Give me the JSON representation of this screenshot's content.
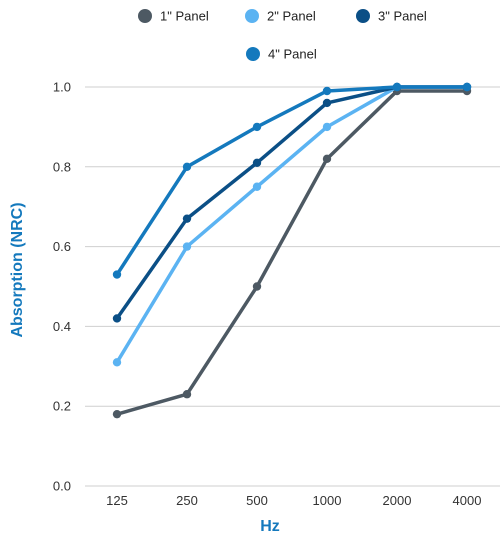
{
  "chart_data": {
    "type": "line",
    "title": "",
    "xlabel": "Hz",
    "ylabel": "Absorption (NRC)",
    "categories": [
      "125",
      "250",
      "500",
      "1000",
      "2000",
      "4000"
    ],
    "yticks": [
      "0.0",
      "0.2",
      "0.4",
      "0.6",
      "0.8",
      "1.0"
    ],
    "ylim": [
      0,
      1.0
    ],
    "grid": true,
    "legend": "top",
    "label_color": "#1479bd",
    "series": [
      {
        "name": "1\" Panel",
        "color": "#4d5963",
        "values": [
          0.18,
          0.23,
          0.5,
          0.82,
          0.99,
          0.99
        ]
      },
      {
        "name": "2\" Panel",
        "color": "#5bb3f2",
        "values": [
          0.31,
          0.6,
          0.75,
          0.9,
          1.0,
          1.0
        ]
      },
      {
        "name": "3\" Panel",
        "color": "#0b4f86",
        "values": [
          0.42,
          0.67,
          0.81,
          0.96,
          1.0,
          1.0
        ]
      },
      {
        "name": "4\" Panel",
        "color": "#1479bd",
        "values": [
          0.53,
          0.8,
          0.9,
          0.99,
          1.0,
          1.0
        ]
      }
    ]
  }
}
